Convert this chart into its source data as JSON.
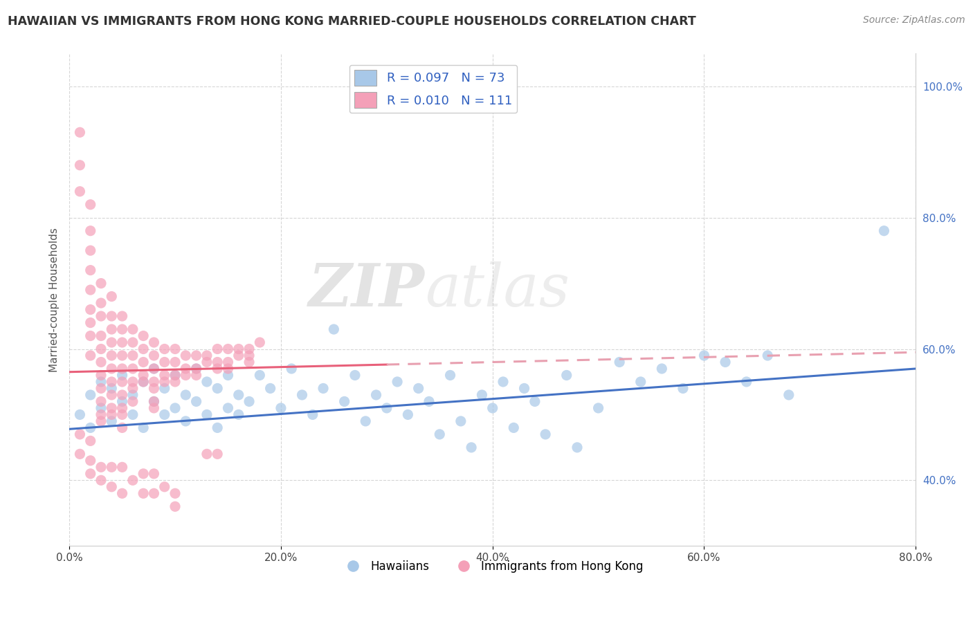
{
  "title": "HAWAIIAN VS IMMIGRANTS FROM HONG KONG MARRIED-COUPLE HOUSEHOLDS CORRELATION CHART",
  "source": "Source: ZipAtlas.com",
  "ylabel": "Married-couple Households",
  "xlim": [
    0.0,
    0.8
  ],
  "ylim": [
    0.3,
    1.05
  ],
  "xtick_labels": [
    "0.0%",
    "20.0%",
    "40.0%",
    "60.0%",
    "80.0%"
  ],
  "xtick_vals": [
    0.0,
    0.2,
    0.4,
    0.6,
    0.8
  ],
  "ytick_labels": [
    "40.0%",
    "60.0%",
    "80.0%",
    "100.0%"
  ],
  "ytick_vals": [
    0.4,
    0.6,
    0.8,
    1.0
  ],
  "legend1_label": "R = 0.097   N = 73",
  "legend2_label": "R = 0.010   N = 111",
  "legend1_color": "#a8c8e8",
  "legend2_color": "#f4a0b8",
  "scatter_blue_x": [
    0.01,
    0.02,
    0.02,
    0.03,
    0.03,
    0.04,
    0.04,
    0.05,
    0.05,
    0.06,
    0.06,
    0.07,
    0.07,
    0.08,
    0.08,
    0.09,
    0.09,
    0.1,
    0.1,
    0.11,
    0.11,
    0.12,
    0.12,
    0.13,
    0.13,
    0.14,
    0.14,
    0.15,
    0.15,
    0.16,
    0.16,
    0.17,
    0.18,
    0.19,
    0.2,
    0.21,
    0.22,
    0.23,
    0.24,
    0.25,
    0.26,
    0.27,
    0.28,
    0.29,
    0.3,
    0.31,
    0.32,
    0.33,
    0.34,
    0.35,
    0.36,
    0.37,
    0.38,
    0.39,
    0.4,
    0.41,
    0.42,
    0.43,
    0.44,
    0.45,
    0.47,
    0.48,
    0.5,
    0.52,
    0.54,
    0.56,
    0.58,
    0.6,
    0.62,
    0.64,
    0.66,
    0.68,
    0.77
  ],
  "scatter_blue_y": [
    0.5,
    0.48,
    0.53,
    0.51,
    0.55,
    0.49,
    0.54,
    0.52,
    0.56,
    0.5,
    0.53,
    0.48,
    0.55,
    0.52,
    0.57,
    0.5,
    0.54,
    0.51,
    0.56,
    0.49,
    0.53,
    0.52,
    0.57,
    0.5,
    0.55,
    0.48,
    0.54,
    0.51,
    0.56,
    0.5,
    0.53,
    0.52,
    0.56,
    0.54,
    0.51,
    0.57,
    0.53,
    0.5,
    0.54,
    0.63,
    0.52,
    0.56,
    0.49,
    0.53,
    0.51,
    0.55,
    0.5,
    0.54,
    0.52,
    0.47,
    0.56,
    0.49,
    0.45,
    0.53,
    0.51,
    0.55,
    0.48,
    0.54,
    0.52,
    0.47,
    0.56,
    0.45,
    0.51,
    0.58,
    0.55,
    0.57,
    0.54,
    0.59,
    0.58,
    0.55,
    0.59,
    0.53,
    0.78
  ],
  "scatter_pink_x": [
    0.01,
    0.01,
    0.01,
    0.02,
    0.02,
    0.02,
    0.02,
    0.02,
    0.02,
    0.02,
    0.02,
    0.02,
    0.03,
    0.03,
    0.03,
    0.03,
    0.03,
    0.03,
    0.03,
    0.03,
    0.03,
    0.03,
    0.03,
    0.04,
    0.04,
    0.04,
    0.04,
    0.04,
    0.04,
    0.04,
    0.04,
    0.04,
    0.04,
    0.05,
    0.05,
    0.05,
    0.05,
    0.05,
    0.05,
    0.05,
    0.05,
    0.05,
    0.05,
    0.06,
    0.06,
    0.06,
    0.06,
    0.06,
    0.06,
    0.06,
    0.07,
    0.07,
    0.07,
    0.07,
    0.07,
    0.08,
    0.08,
    0.08,
    0.08,
    0.08,
    0.08,
    0.08,
    0.09,
    0.09,
    0.09,
    0.09,
    0.1,
    0.1,
    0.1,
    0.1,
    0.11,
    0.11,
    0.11,
    0.12,
    0.12,
    0.12,
    0.13,
    0.13,
    0.14,
    0.14,
    0.14,
    0.15,
    0.15,
    0.15,
    0.16,
    0.16,
    0.17,
    0.17,
    0.17,
    0.18,
    0.01,
    0.01,
    0.02,
    0.02,
    0.02,
    0.03,
    0.03,
    0.04,
    0.04,
    0.05,
    0.05,
    0.06,
    0.07,
    0.07,
    0.08,
    0.08,
    0.09,
    0.1,
    0.1,
    0.13,
    0.14
  ],
  "scatter_pink_y": [
    0.93,
    0.88,
    0.84,
    0.82,
    0.78,
    0.75,
    0.72,
    0.69,
    0.66,
    0.64,
    0.62,
    0.59,
    0.7,
    0.67,
    0.65,
    0.62,
    0.6,
    0.58,
    0.56,
    0.54,
    0.52,
    0.5,
    0.49,
    0.68,
    0.65,
    0.63,
    0.61,
    0.59,
    0.57,
    0.55,
    0.53,
    0.51,
    0.5,
    0.65,
    0.63,
    0.61,
    0.59,
    0.57,
    0.55,
    0.53,
    0.51,
    0.5,
    0.48,
    0.63,
    0.61,
    0.59,
    0.57,
    0.55,
    0.54,
    0.52,
    0.62,
    0.6,
    0.58,
    0.56,
    0.55,
    0.61,
    0.59,
    0.57,
    0.55,
    0.54,
    0.52,
    0.51,
    0.6,
    0.58,
    0.56,
    0.55,
    0.6,
    0.58,
    0.56,
    0.55,
    0.59,
    0.57,
    0.56,
    0.59,
    0.57,
    0.56,
    0.59,
    0.58,
    0.6,
    0.58,
    0.57,
    0.6,
    0.58,
    0.57,
    0.6,
    0.59,
    0.6,
    0.59,
    0.58,
    0.61,
    0.47,
    0.44,
    0.46,
    0.43,
    0.41,
    0.42,
    0.4,
    0.42,
    0.39,
    0.42,
    0.38,
    0.4,
    0.41,
    0.38,
    0.41,
    0.38,
    0.39,
    0.38,
    0.36,
    0.44,
    0.44
  ],
  "background_color": "#ffffff",
  "grid_color": "#cccccc",
  "blue_line_color": "#4472c4",
  "pink_line_solid_color": "#e8607a",
  "pink_line_dash_color": "#e8a0b0",
  "watermark_text": "ZIP",
  "watermark_text2": "atlas",
  "watermark_color": "#d8d8d8"
}
